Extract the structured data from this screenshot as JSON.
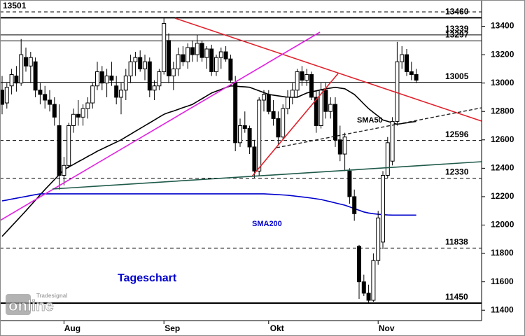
{
  "chart_data": {
    "type": "candlestick",
    "title": "Tageschart",
    "logo": {
      "brand": "Tradesignal",
      "name": "online"
    },
    "categories": [
      null,
      null,
      null,
      null,
      null,
      null,
      null,
      null,
      null,
      null,
      null,
      null,
      null,
      "Aug",
      null,
      null,
      null,
      null,
      null,
      null,
      null,
      null,
      null,
      null,
      null,
      null,
      null,
      null,
      null,
      null,
      null,
      null,
      null,
      null,
      "Sep",
      null,
      null,
      null,
      null,
      null,
      null,
      null,
      null,
      null,
      null,
      null,
      null,
      null,
      null,
      null,
      null,
      null,
      null,
      null,
      null,
      null,
      "Okt",
      null,
      null,
      null,
      null,
      null,
      null,
      null,
      null,
      null,
      null,
      null,
      null,
      null,
      null,
      null,
      null,
      null,
      null,
      null,
      null,
      null,
      null,
      "Nov",
      null,
      null,
      null,
      null,
      null,
      null,
      null,
      null
    ],
    "open": [
      12950,
      12860,
      12980,
      13050,
      13000,
      13180,
      13120,
      13150,
      12950,
      12920,
      12880,
      12850,
      12700,
      12350,
      12420,
      12700,
      12780,
      12760,
      12820,
      12860,
      12980,
      13080,
      13000,
      13050,
      12980,
      12900,
      12950,
      13050,
      13150,
      13180,
      13100,
      13150,
      12950,
      12980,
      13080,
      13300,
      13050,
      13100,
      13200,
      13150,
      13250,
      13200,
      13280,
      13180,
      13240,
      13080,
      13180,
      13220,
      13170,
      13000,
      12580,
      12700,
      12680,
      12550,
      12380,
      12880,
      12920,
      12800,
      12750,
      12620,
      12820,
      12900,
      12950,
      13080,
      13020,
      13060,
      12900,
      12700,
      12950,
      12800,
      12850,
      12600,
      12500,
      12380,
      12200,
      11850,
      11600,
      11520,
      11470,
      11750,
      11880,
      12350,
      12450,
      12730,
      13150,
      13200,
      13080,
      13060
    ],
    "high": [
      13050,
      13000,
      13100,
      13120,
      13310,
      13250,
      13220,
      13180,
      13000,
      12980,
      12950,
      12900,
      12850,
      12480,
      12720,
      12820,
      12880,
      12850,
      12900,
      13000,
      13150,
      13120,
      13100,
      13150,
      13050,
      13000,
      13100,
      13200,
      13220,
      13230,
      13200,
      13180,
      13020,
      13100,
      13460,
      13350,
      13150,
      13250,
      13260,
      13280,
      13300,
      13340,
      13300,
      13260,
      13270,
      13200,
      13250,
      13260,
      13200,
      13050,
      12750,
      12800,
      12700,
      12600,
      12900,
      12950,
      12950,
      12880,
      12800,
      12850,
      12950,
      13000,
      13100,
      13120,
      13100,
      13080,
      12950,
      13000,
      13000,
      12900,
      12900,
      12700,
      12650,
      12400,
      12250,
      11860,
      11650,
      11580,
      11800,
      12100,
      12380,
      12620,
      12760,
      13290,
      13260,
      13240,
      13150,
      13100
    ],
    "low": [
      12780,
      12820,
      12920,
      12940,
      12980,
      13080,
      13000,
      12900,
      12850,
      12820,
      12800,
      12700,
      12250,
      12280,
      12400,
      12650,
      12700,
      12700,
      12750,
      12820,
      12950,
      12950,
      12900,
      12980,
      12850,
      12780,
      12880,
      13000,
      13050,
      13080,
      13020,
      12900,
      12880,
      12950,
      13060,
      13000,
      12950,
      13050,
      13120,
      13100,
      13150,
      13150,
      13150,
      13100,
      13050,
      13050,
      13100,
      13150,
      13000,
      12520,
      12550,
      12650,
      12500,
      12330,
      12350,
      12800,
      12780,
      12700,
      12560,
      12600,
      12780,
      12850,
      12900,
      12980,
      12980,
      12880,
      12650,
      12680,
      12750,
      12750,
      12550,
      12450,
      12380,
      12150,
      12030,
      11480,
      11500,
      11450,
      11460,
      11720,
      11830,
      12330,
      12420,
      12700,
      13100,
      13050,
      13020,
      13000
    ],
    "close": [
      12850,
      12970,
      13060,
      13000,
      13200,
      13120,
      13180,
      12950,
      12920,
      12880,
      12850,
      12760,
      12350,
      12420,
      12700,
      12780,
      12760,
      12820,
      12860,
      12980,
      13080,
      13000,
      13050,
      13020,
      12900,
      12950,
      13050,
      13150,
      13180,
      13100,
      13150,
      12950,
      12980,
      13080,
      13420,
      13050,
      13100,
      13200,
      13150,
      13250,
      13200,
      13280,
      13180,
      13240,
      13080,
      13180,
      13220,
      13170,
      13020,
      12580,
      12700,
      12680,
      12550,
      12380,
      12880,
      12920,
      12800,
      12750,
      12620,
      12820,
      12900,
      12950,
      13080,
      13020,
      13060,
      12900,
      12700,
      12950,
      12800,
      12850,
      12600,
      12500,
      12620,
      12200,
      12080,
      11600,
      11520,
      11470,
      11750,
      12050,
      12350,
      12580,
      12730,
      13150,
      13200,
      13080,
      13060,
      13020
    ],
    "overlays": [
      {
        "name": "SMA50",
        "color": "#000000",
        "values": [
          11920,
          11956,
          11992,
          12028,
          12064,
          12100,
          12138,
          12175,
          12213,
          12250,
          12285,
          12320,
          12355,
          12390,
          12409,
          12427,
          12446,
          12464,
          12483,
          12501,
          12520,
          12536,
          12552,
          12568,
          12584,
          12600,
          12620,
          12640,
          12660,
          12680,
          12700,
          12720,
          12740,
          12760,
          12780,
          12792,
          12803,
          12815,
          12827,
          12838,
          12850,
          12870,
          12890,
          12910,
          12930,
          12943,
          12955,
          12968,
          12980,
          12978,
          12975,
          12973,
          12970,
          12958,
          12945,
          12933,
          12920,
          12915,
          12910,
          12905,
          12900,
          12900,
          12900,
          12915,
          12930,
          12938,
          12945,
          12953,
          12960,
          12965,
          12970,
          12965,
          12960,
          12940,
          12920,
          12887,
          12853,
          12820,
          12793,
          12767,
          12740,
          12730,
          12720,
          12710,
          12715,
          12720,
          12725,
          12730
        ]
      },
      {
        "name": "SMA200",
        "color": "#0000cc",
        "values": [
          12170,
          12176,
          12183,
          12189,
          12195,
          12201,
          12208,
          12214,
          12220,
          12220,
          12220,
          12220,
          12220,
          12220,
          12220,
          12220,
          12220,
          12220,
          12220,
          12220,
          12220,
          12220,
          12220,
          12220,
          12220,
          12220,
          12220,
          12220,
          12220,
          12220,
          12220,
          12220,
          12220,
          12220,
          12220,
          12220,
          12220,
          12220,
          12220,
          12220,
          12220,
          12220,
          12220,
          12220,
          12220,
          12220,
          12220,
          12220,
          12220,
          12220,
          12220,
          12220,
          12220,
          12220,
          12220,
          12220,
          12218,
          12216,
          12214,
          12212,
          12210,
          12206,
          12202,
          12198,
          12194,
          12190,
          12185,
          12180,
          12172,
          12164,
          12156,
          12148,
          12140,
          12128,
          12116,
          12104,
          12092,
          12085,
          12080,
          12076,
          12073,
          12071,
          12070,
          12070,
          12070,
          12070,
          12070,
          12070
        ]
      }
    ],
    "levels": [
      {
        "value": 13501,
        "style": "dashed",
        "side": "left"
      },
      {
        "value": 13460,
        "style": "thick",
        "side": "right"
      },
      {
        "value": 13339,
        "style": "solid",
        "side": "right"
      },
      {
        "value": 13297,
        "style": "solid",
        "side": "right"
      },
      {
        "value": 13005,
        "style": "solid",
        "side": "right"
      },
      {
        "value": 12596,
        "style": "dashed",
        "side": "right"
      },
      {
        "value": 12330,
        "style": "dashed",
        "side": "right"
      },
      {
        "value": 11838,
        "style": "dashed",
        "side": "right"
      },
      {
        "value": 11450,
        "style": "thick",
        "side": "right"
      }
    ],
    "ylim": [
      11327,
      13585
    ],
    "yticks": [
      11400,
      11600,
      11800,
      12000,
      12200,
      12400,
      12600,
      12800,
      13000,
      13200,
      13400
    ],
    "up_color": "#ffffff",
    "down_color": "#000000"
  }
}
